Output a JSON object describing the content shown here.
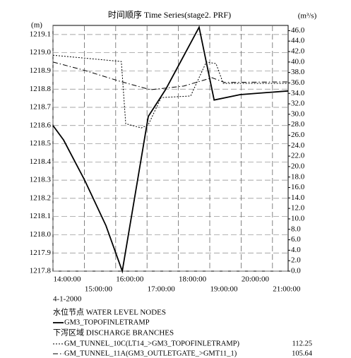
{
  "chart_data": {
    "type": "line",
    "title": "时间顺序 Time Series(stage2. PRF)",
    "y_label": "(m)",
    "y2_label": "(m³/s)",
    "date_label": "4-1-2000",
    "legend_headings": [
      "水位节点 WATER LEVEL NODES",
      "下泻区域 DISCHARGE BRANCHES"
    ],
    "xlim": [
      14,
      21.5
    ],
    "xticks": [
      {
        "value": 14,
        "label": "14:00:00"
      },
      {
        "value": 15,
        "label": "15:00:00"
      },
      {
        "value": 16,
        "label": "16:00:00"
      },
      {
        "value": 17,
        "label": "17:00:00"
      },
      {
        "value": 18,
        "label": "18:00:00"
      },
      {
        "value": 19,
        "label": "19:00:00"
      },
      {
        "value": 20,
        "label": "20:00:00"
      },
      {
        "value": 21,
        "label": "21:00:00"
      }
    ],
    "ylim": [
      1217.8,
      1219.15
    ],
    "yticks": [
      1217.8,
      1217.9,
      {
        "value": 1218,
        "label": "1218.0"
      },
      1218.1,
      1218.2,
      1218.3,
      1218.4,
      1218.5,
      1218.6,
      1218.7,
      1218.8,
      1218.9,
      {
        "value": 1219,
        "label": "1219.0"
      },
      1219.1
    ],
    "y2lim": [
      0,
      47
    ],
    "y2ticks": [
      {
        "value": 0,
        "label": "0.0"
      },
      {
        "value": 2,
        "label": "2.0"
      },
      {
        "value": 4,
        "label": "4.0"
      },
      {
        "value": 6,
        "label": "6.0"
      },
      {
        "value": 8,
        "label": "8.0"
      },
      {
        "value": 10,
        "label": "10.0"
      },
      {
        "value": 12,
        "label": "12.0"
      },
      {
        "value": 14,
        "label": "14.0"
      },
      {
        "value": 16,
        "label": "16.0"
      },
      {
        "value": 18,
        "label": "18.0"
      },
      {
        "value": 20,
        "label": "20.0"
      },
      {
        "value": 22,
        "label": "22.0"
      },
      {
        "value": 24,
        "label": "24.0"
      },
      {
        "value": 26,
        "label": "26.0"
      },
      {
        "value": 28,
        "label": "28.0"
      },
      {
        "value": 30,
        "label": "30.0"
      },
      {
        "value": 32,
        "label": "32.0"
      },
      {
        "value": 34,
        "label": "34.0"
      },
      {
        "value": 36,
        "label": "36.0"
      },
      {
        "value": 38,
        "label": "38.0"
      },
      {
        "value": 40,
        "label": "40.0"
      },
      {
        "value": 42,
        "label": "42.0"
      },
      {
        "value": 44,
        "label": "44.0"
      },
      {
        "value": 46,
        "label": "46.0"
      }
    ],
    "grid": true,
    "series": [
      {
        "name": "GM3_TOPOFINLETRAMP",
        "color": "#000000",
        "style": "solid",
        "x": [
          14,
          14.34,
          15.01,
          15.69,
          16.21,
          17.04,
          17.6,
          18.66,
          19.14,
          19.97,
          21.5
        ],
        "values": [
          1218.6,
          1218.52,
          1218.3,
          1218.05,
          1217.8,
          1218.65,
          1218.8,
          1219.14,
          1218.74,
          1218.77,
          1218.79
        ]
      },
      {
        "name": "GM_TUNNEL_10C(LT14_>GM3_TOPOFINLETRAMP)",
        "color": "#000000",
        "style": "dotted",
        "axis": "y2",
        "legend_value": 112.25,
        "x": [
          14,
          16.18,
          16.32,
          16.82,
          17.04,
          17.45,
          18.39,
          18.89,
          19.2,
          19.43,
          21.5
        ],
        "values": [
          41.3,
          40.1,
          28.2,
          27.4,
          28.0,
          33.2,
          33.5,
          40.0,
          39.7,
          35.9,
          35.9
        ]
      },
      {
        "name": "GM_TUNNEL_11A(GM3_OUTLETGATE_>GMT11_1)",
        "color": "#000000",
        "style": "dashdot",
        "axis": "y2",
        "legend_value": 105.64,
        "x": [
          14,
          15.01,
          16.14,
          17.11,
          18.17,
          19.07,
          19.47,
          21.5
        ],
        "values": [
          40.0,
          38.4,
          36.3,
          34.7,
          35.4,
          37.0,
          36.1,
          36.2
        ]
      }
    ]
  }
}
